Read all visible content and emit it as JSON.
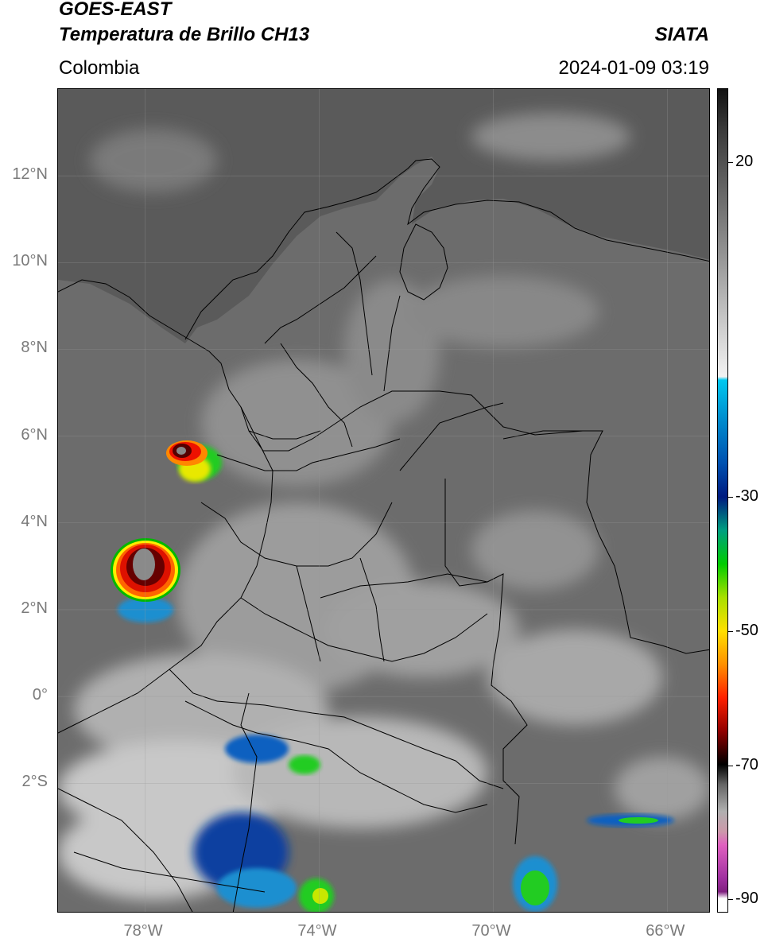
{
  "header": {
    "satellite": "GOES-EAST",
    "product": "Temperatura de Brillo CH13",
    "region": "Colombia",
    "agency": "SIATA",
    "datetime": "2024-01-09 03:19"
  },
  "map": {
    "lon_range": [
      -80,
      -65
    ],
    "lat_range": [
      -5,
      14
    ],
    "lat_ticks": [
      {
        "value": 12,
        "label": "12°N"
      },
      {
        "value": 10,
        "label": "10°N"
      },
      {
        "value": 8,
        "label": "8°N"
      },
      {
        "value": 6,
        "label": "6°N"
      },
      {
        "value": 4,
        "label": "4°N"
      },
      {
        "value": 2,
        "label": "2°N"
      },
      {
        "value": 0,
        "label": "0°"
      },
      {
        "value": -2,
        "label": "2°S"
      }
    ],
    "lon_ticks": [
      {
        "value": -78,
        "label": "78°W"
      },
      {
        "value": -74,
        "label": "74°W"
      },
      {
        "value": -70,
        "label": "70°W"
      },
      {
        "value": -66,
        "label": "66°W"
      }
    ],
    "grid": true,
    "ocean_color": "#5a5a5a",
    "land_color": "#6e6e6e"
  },
  "colorbar": {
    "range": [
      -92,
      31
    ],
    "ticks": [
      {
        "value": 20,
        "label": "20"
      },
      {
        "value": -30,
        "label": "-30"
      },
      {
        "value": -50,
        "label": "-50"
      },
      {
        "value": -70,
        "label": "-70"
      },
      {
        "value": -90,
        "label": "-90"
      }
    ]
  }
}
